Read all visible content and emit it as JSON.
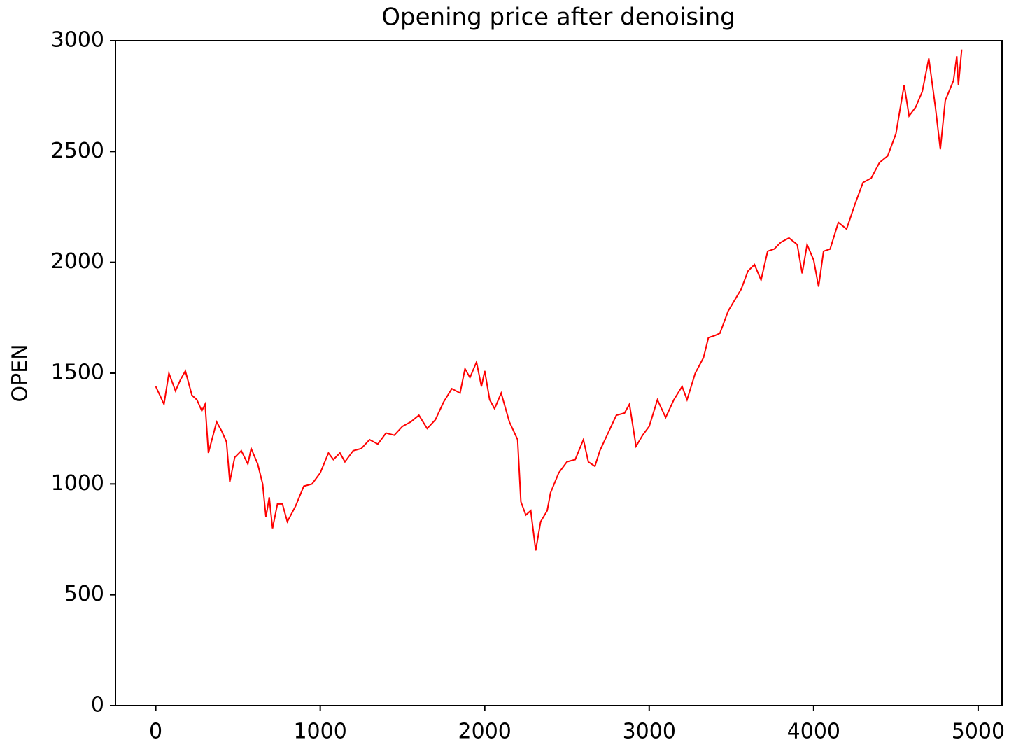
{
  "chart_data": {
    "type": "line",
    "title": "Opening price after denoising",
    "y_label": "OPEN",
    "x": [
      0,
      50,
      80,
      120,
      150,
      180,
      220,
      250,
      280,
      300,
      320,
      370,
      400,
      430,
      450,
      480,
      520,
      560,
      580,
      620,
      650,
      670,
      690,
      710,
      740,
      770,
      800,
      850,
      900,
      950,
      1000,
      1050,
      1080,
      1120,
      1150,
      1200,
      1250,
      1300,
      1350,
      1400,
      1450,
      1500,
      1550,
      1600,
      1650,
      1700,
      1750,
      1800,
      1850,
      1880,
      1910,
      1950,
      1980,
      2000,
      2030,
      2060,
      2100,
      2150,
      2200,
      2220,
      2250,
      2280,
      2310,
      2340,
      2380,
      2400,
      2450,
      2500,
      2550,
      2600,
      2630,
      2670,
      2700,
      2750,
      2800,
      2850,
      2880,
      2920,
      2960,
      3000,
      3050,
      3100,
      3150,
      3200,
      3230,
      3280,
      3330,
      3360,
      3400,
      3430,
      3480,
      3520,
      3560,
      3600,
      3640,
      3680,
      3720,
      3760,
      3800,
      3850,
      3900,
      3930,
      3960,
      4000,
      4030,
      4060,
      4100,
      4150,
      4200,
      4250,
      4300,
      4350,
      4400,
      4450,
      4500,
      4550,
      4580,
      4620,
      4660,
      4700,
      4740,
      4770,
      4800,
      4850,
      4870,
      4880,
      4900
    ],
    "series": [
      {
        "name": "OPEN",
        "color": "#ff0000",
        "values": [
          1440,
          1360,
          1500,
          1420,
          1470,
          1510,
          1400,
          1380,
          1330,
          1360,
          1140,
          1280,
          1240,
          1190,
          1010,
          1120,
          1150,
          1090,
          1160,
          1090,
          1000,
          850,
          940,
          800,
          910,
          910,
          830,
          900,
          990,
          1000,
          1050,
          1140,
          1110,
          1140,
          1100,
          1150,
          1160,
          1200,
          1180,
          1230,
          1220,
          1260,
          1280,
          1310,
          1250,
          1290,
          1370,
          1430,
          1410,
          1520,
          1480,
          1550,
          1440,
          1510,
          1380,
          1340,
          1410,
          1280,
          1200,
          920,
          860,
          880,
          700,
          830,
          880,
          960,
          1050,
          1100,
          1110,
          1200,
          1100,
          1080,
          1150,
          1230,
          1310,
          1320,
          1360,
          1170,
          1220,
          1260,
          1380,
          1300,
          1380,
          1440,
          1380,
          1500,
          1570,
          1660,
          1670,
          1680,
          1780,
          1830,
          1880,
          1960,
          1990,
          1920,
          2050,
          2060,
          2090,
          2110,
          2080,
          1950,
          2080,
          2010,
          1890,
          2050,
          2060,
          2180,
          2150,
          2260,
          2360,
          2380,
          2450,
          2480,
          2580,
          2800,
          2660,
          2700,
          2770,
          2920,
          2700,
          2510,
          2730,
          2820,
          2930,
          2800,
          2960
        ]
      }
    ],
    "xlim": [
      -245,
      5145
    ],
    "xticks": [
      0,
      1000,
      2000,
      3000,
      4000,
      5000
    ],
    "ylim": [
      0,
      3000
    ],
    "yticks": [
      0,
      500,
      1000,
      1500,
      2000,
      2500,
      3000
    ]
  }
}
